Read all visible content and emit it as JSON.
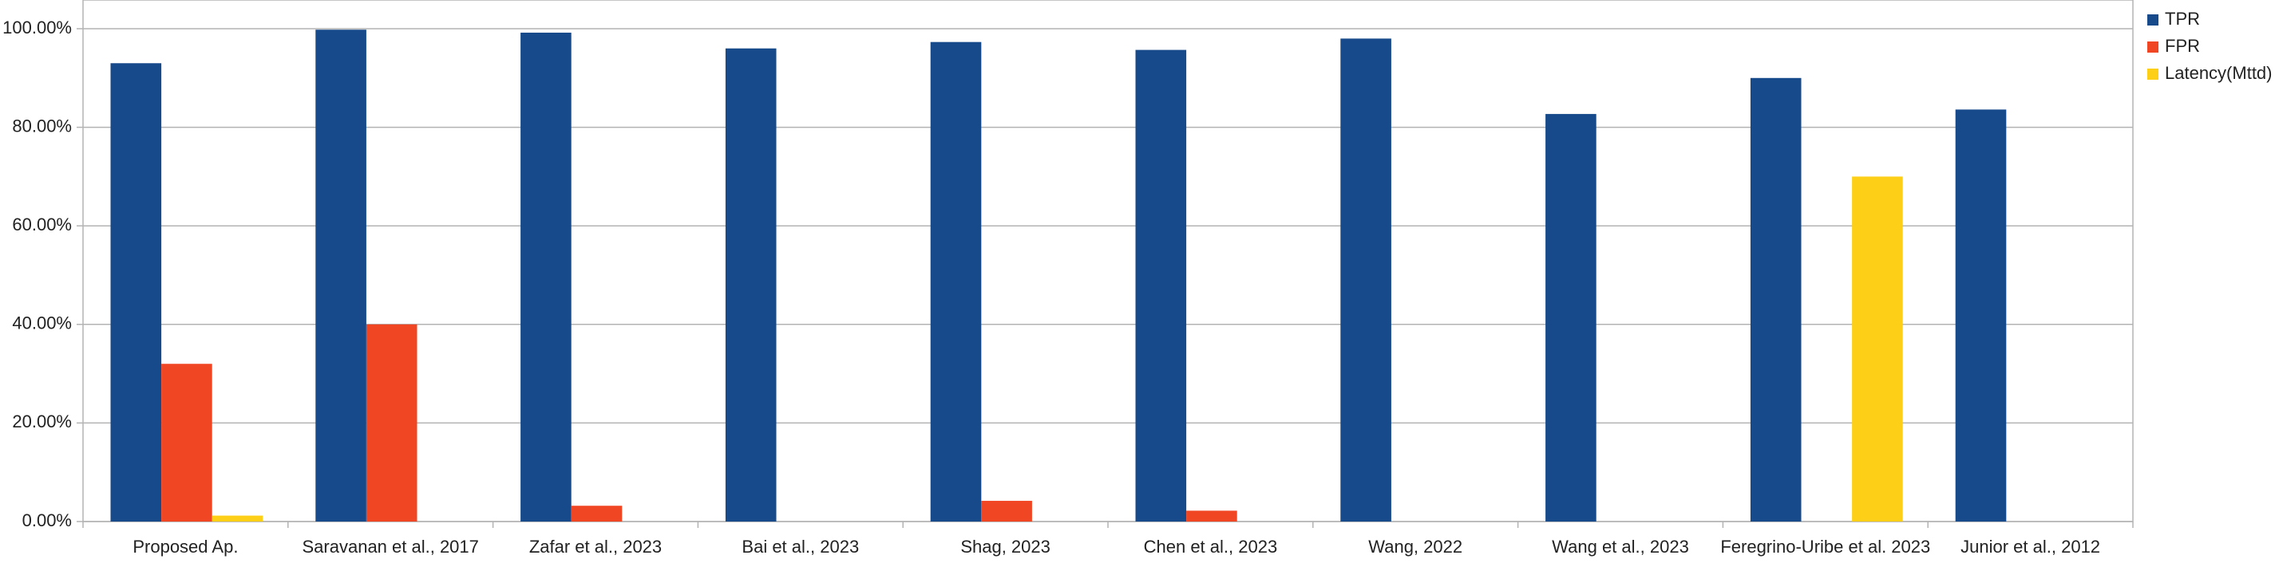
{
  "chart_data": {
    "type": "bar",
    "categories": [
      "Proposed Ap.",
      "Saravanan et al., 2017",
      "Zafar et al., 2023",
      "Bai et al., 2023",
      "Shag, 2023",
      "Chen et al., 2023",
      "Wang, 2022",
      "Wang et al., 2023",
      "Feregrino-Uribe et al. 2023",
      "Junior et al., 2012"
    ],
    "series": [
      {
        "name": "TPR",
        "color": "#174a8b",
        "values": [
          93,
          99.8,
          99.2,
          96,
          97.3,
          95.7,
          98,
          82.7,
          90,
          83.6
        ]
      },
      {
        "name": "FPR",
        "color": "#f04623",
        "values": [
          32,
          40,
          3.2,
          null,
          4.2,
          2.2,
          null,
          null,
          null,
          null
        ]
      },
      {
        "name": "Latency(Mttd)",
        "color": "#fdd017",
        "values": [
          1.2,
          null,
          null,
          null,
          null,
          null,
          null,
          null,
          70,
          null
        ]
      }
    ],
    "ylim": [
      0,
      100
    ],
    "yticks": [
      {
        "value": 0,
        "label": "0.00%"
      },
      {
        "value": 20,
        "label": "20.00%"
      },
      {
        "value": 40,
        "label": "40.00%"
      },
      {
        "value": 60,
        "label": "60.00%"
      },
      {
        "value": 80,
        "label": "80.00%"
      },
      {
        "value": 100,
        "label": "100.00%"
      }
    ],
    "grid": true,
    "legend": "right"
  }
}
